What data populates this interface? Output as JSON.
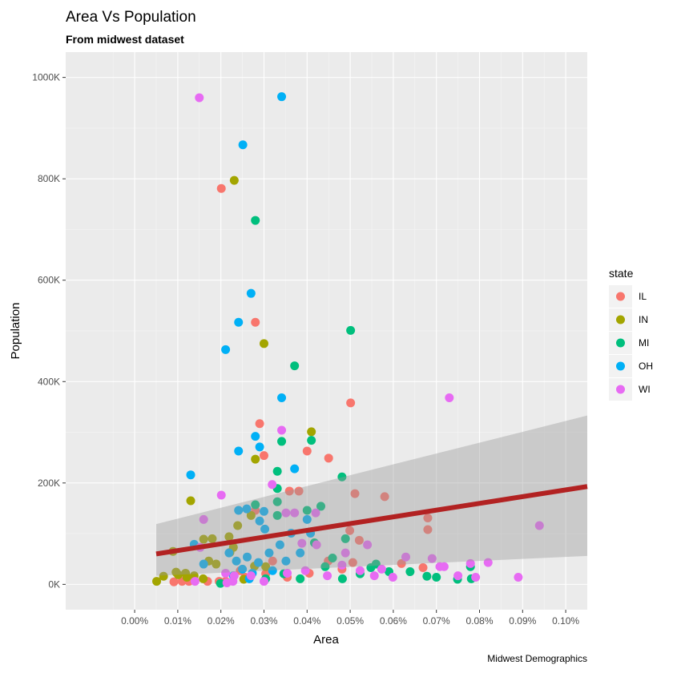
{
  "chart_data": {
    "type": "scatter",
    "title": "Area Vs Population",
    "subtitle": "From midwest dataset",
    "caption": "Midwest Demographics",
    "xlabel": "Area",
    "ylabel": "Population",
    "xlim": [
      -0.00016,
      0.00105
    ],
    "ylim": [
      -50000,
      1050000
    ],
    "x_ticks": [
      0.0,
      0.0001,
      0.0002,
      0.0003,
      0.0004,
      0.0005,
      0.0006,
      0.0007,
      0.0008,
      0.0009,
      0.001
    ],
    "x_tick_labels": [
      "0.00%",
      "0.01%",
      "0.02%",
      "0.03%",
      "0.04%",
      "0.05%",
      "0.06%",
      "0.07%",
      "0.08%",
      "0.09%",
      "0.10%"
    ],
    "y_ticks": [
      0,
      200000,
      400000,
      600000,
      800000,
      1000000
    ],
    "y_tick_labels": [
      "0K",
      "200K",
      "400K",
      "600K",
      "800K",
      "1000K"
    ],
    "grid": true,
    "legend": {
      "title": "state",
      "placement": "right",
      "entries": [
        {
          "label": "IL",
          "color": "#F8766D"
        },
        {
          "label": "IN",
          "color": "#A3A500"
        },
        {
          "label": "MI",
          "color": "#00BF7D"
        },
        {
          "label": "OH",
          "color": "#00B0F6"
        },
        {
          "label": "WI",
          "color": "#E76BF3"
        }
      ]
    },
    "series": [
      {
        "name": "IL",
        "color": "#F8766D",
        "points": [
          [
            0.000201,
            781000
          ],
          [
            0.00028,
            517000
          ],
          [
            0.000501,
            358000
          ],
          [
            0.00029,
            317000
          ],
          [
            0.0004,
            263000
          ],
          [
            0.00045,
            249000
          ],
          [
            0.0003,
            254000
          ],
          [
            0.000359,
            184000
          ],
          [
            0.000381,
            184000
          ],
          [
            0.000511,
            179000
          ],
          [
            0.00058,
            173000
          ],
          [
            0.00068,
            131000
          ],
          [
            0.00068,
            108000
          ],
          [
            0.00028,
            146000
          ],
          [
            0.000499,
            106000
          ],
          [
            0.000521,
            87000
          ],
          [
            0.000619,
            41000
          ],
          [
            0.000669,
            33000
          ],
          [
            9.1e-05,
            5000
          ],
          [
            0.00011,
            6000
          ],
          [
            0.000126,
            6000
          ],
          [
            0.000169,
            6000
          ],
          [
            0.000196,
            6000
          ],
          [
            0.000211,
            6000
          ],
          [
            0.000256,
            14000
          ],
          [
            0.000304,
            21000
          ],
          [
            0.000354,
            14000
          ],
          [
            0.000405,
            22000
          ],
          [
            0.000481,
            30000
          ],
          [
            0.000506,
            43000
          ],
          [
            0.000449,
            46000
          ],
          [
            0.00032,
            46000
          ],
          [
            0.000245,
            27000
          ]
        ]
      },
      {
        "name": "IN",
        "color": "#A3A500",
        "points": [
          [
            0.000231,
            797000
          ],
          [
            0.0003,
            475000
          ],
          [
            0.00041,
            301000
          ],
          [
            0.00028,
            247000
          ],
          [
            0.00013,
            165000
          ],
          [
            0.00027,
            136000
          ],
          [
            5.1e-05,
            6000
          ],
          [
            8.9e-05,
            65000
          ],
          [
            0.00016,
            89000
          ],
          [
            0.00018,
            90000
          ],
          [
            0.000219,
            94000
          ],
          [
            0.000221,
            63000
          ],
          [
            0.000172,
            46000
          ],
          [
            0.000189,
            40000
          ],
          [
            0.000118,
            22000
          ],
          [
            0.000101,
            19000
          ],
          [
            0.000121,
            14000
          ],
          [
            0.000138,
            17000
          ],
          [
            0.000159,
            11000
          ],
          [
            0.000253,
            10000
          ],
          [
            6.7e-05,
            16000
          ],
          [
            9.6e-05,
            24000
          ],
          [
            0.000229,
            73000
          ],
          [
            0.000239,
            116000
          ],
          [
            0.000278,
            36000
          ],
          [
            0.000304,
            35000
          ]
        ]
      },
      {
        "name": "MI",
        "color": "#00BF7D",
        "points": [
          [
            0.00028,
            718000
          ],
          [
            0.000501,
            501000
          ],
          [
            0.000371,
            431000
          ],
          [
            0.000341,
            282000
          ],
          [
            0.00041,
            284000
          ],
          [
            0.000331,
            223000
          ],
          [
            0.000481,
            212000
          ],
          [
            0.000331,
            189000
          ],
          [
            0.000331,
            163000
          ],
          [
            0.00028,
            157000
          ],
          [
            0.000331,
            136000
          ],
          [
            0.0004,
            146000
          ],
          [
            0.000432,
            154000
          ],
          [
            0.000489,
            90000
          ],
          [
            0.00056,
            40000
          ],
          [
            0.00059,
            25000
          ],
          [
            0.000639,
            25000
          ],
          [
            0.000678,
            16000
          ],
          [
            0.0007,
            14000
          ],
          [
            0.000749,
            10000
          ],
          [
            0.000779,
            35000
          ],
          [
            0.000781,
            11000
          ],
          [
            0.000417,
            82000
          ],
          [
            0.000442,
            35000
          ],
          [
            0.000482,
            11000
          ],
          [
            0.000523,
            21000
          ],
          [
            0.000384,
            11000
          ],
          [
            0.000346,
            21000
          ],
          [
            0.000304,
            11000
          ],
          [
            0.000199,
            2000
          ],
          [
            0.000548,
            33000
          ],
          [
            0.000459,
            52000
          ]
        ]
      },
      {
        "name": "OH",
        "color": "#00B0F6",
        "points": [
          [
            0.000341,
            962000
          ],
          [
            0.000251,
            867000
          ],
          [
            0.00027,
            574000
          ],
          [
            0.000241,
            517000
          ],
          [
            0.000211,
            463000
          ],
          [
            0.000341,
            368000
          ],
          [
            0.00028,
            292000
          ],
          [
            0.00029,
            271000
          ],
          [
            0.000241,
            263000
          ],
          [
            0.000371,
            228000
          ],
          [
            0.00013,
            216000
          ],
          [
            0.000241,
            146000
          ],
          [
            0.00026,
            149000
          ],
          [
            0.0003,
            144000
          ],
          [
            0.00029,
            125000
          ],
          [
            0.0004,
            128000
          ],
          [
            0.000138,
            79000
          ],
          [
            0.00016,
            40000
          ],
          [
            0.000219,
            62000
          ],
          [
            0.000236,
            46000
          ],
          [
            0.00025,
            30000
          ],
          [
            0.000261,
            54000
          ],
          [
            0.000273,
            22000
          ],
          [
            0.000287,
            43000
          ],
          [
            0.000312,
            62000
          ],
          [
            0.00032,
            27000
          ],
          [
            0.000337,
            78000
          ],
          [
            0.000363,
            101000
          ],
          [
            0.000384,
            62000
          ],
          [
            0.000408,
            101000
          ],
          [
            0.000229,
            17000
          ],
          [
            0.000266,
            11000
          ],
          [
            0.000302,
            109000
          ],
          [
            0.000351,
            46000
          ]
        ]
      },
      {
        "name": "WI",
        "color": "#E76BF3",
        "points": [
          [
            0.00015,
            960000
          ],
          [
            0.000341,
            304000
          ],
          [
            0.00073,
            368000
          ],
          [
            0.000201,
            176000
          ],
          [
            0.00016,
            128000
          ],
          [
            0.000319,
            197000
          ],
          [
            0.000351,
            141000
          ],
          [
            0.000371,
            141000
          ],
          [
            0.00042,
            141000
          ],
          [
            0.000939,
            116000
          ],
          [
            0.00089,
            14000
          ],
          [
            0.000152,
            73000
          ],
          [
            0.00014,
            6000
          ],
          [
            0.000228,
            6000
          ],
          [
            0.000211,
            22000
          ],
          [
            0.000231,
            17000
          ],
          [
            0.000214,
            3000
          ],
          [
            0.00054,
            78000
          ],
          [
            0.000629,
            54000
          ],
          [
            0.000599,
            14000
          ],
          [
            0.00069,
            51000
          ],
          [
            0.000708,
            35000
          ],
          [
            0.000718,
            35000
          ],
          [
            0.00075,
            17000
          ],
          [
            0.000779,
            41000
          ],
          [
            0.000791,
            14000
          ],
          [
            0.00082,
            43000
          ],
          [
            0.000573,
            30000
          ],
          [
            0.000523,
            27000
          ],
          [
            0.000481,
            38000
          ],
          [
            0.000447,
            17000
          ],
          [
            0.000396,
            27000
          ],
          [
            0.000354,
            22000
          ],
          [
            0.0003,
            6000
          ],
          [
            0.00027,
            17000
          ],
          [
            0.000489,
            62000
          ],
          [
            0.000556,
            17000
          ],
          [
            0.000422,
            78000
          ],
          [
            0.000388,
            81000
          ]
        ]
      }
    ],
    "smooth": {
      "method": "lm",
      "color": "#B22222",
      "ribbon_color": "#999999",
      "x": [
        5e-05,
        0.00105
      ],
      "fit": [
        60000,
        193000
      ],
      "lower": [
        17000,
        56000
      ],
      "upper": [
        119000,
        333000
      ]
    }
  }
}
